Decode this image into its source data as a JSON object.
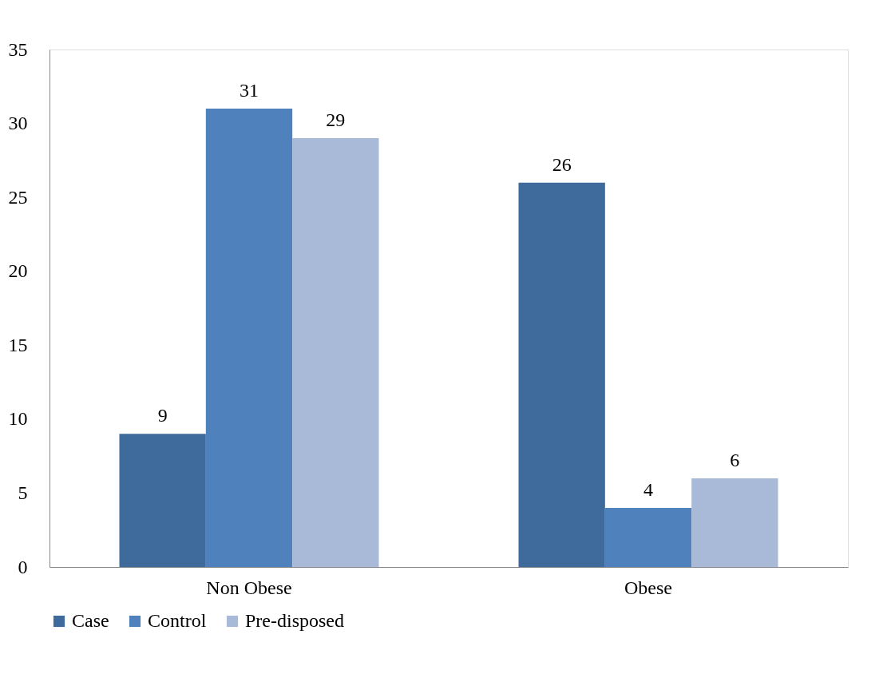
{
  "chart_data": {
    "type": "bar",
    "categories": [
      "Non Obese",
      "Obese"
    ],
    "series": [
      {
        "name": "Case",
        "color": "#3f6a9c",
        "values": [
          9,
          26
        ]
      },
      {
        "name": "Control",
        "color": "#4f81bd",
        "values": [
          31,
          4
        ]
      },
      {
        "name": "Pre-disposed",
        "color": "#a9b9d8",
        "values": [
          29,
          6
        ]
      }
    ],
    "ylim": [
      0,
      35
    ],
    "yticks": [
      0,
      5,
      10,
      15,
      20,
      25,
      30,
      35
    ],
    "grid": false,
    "legend": "bottom",
    "data_labels": true
  }
}
